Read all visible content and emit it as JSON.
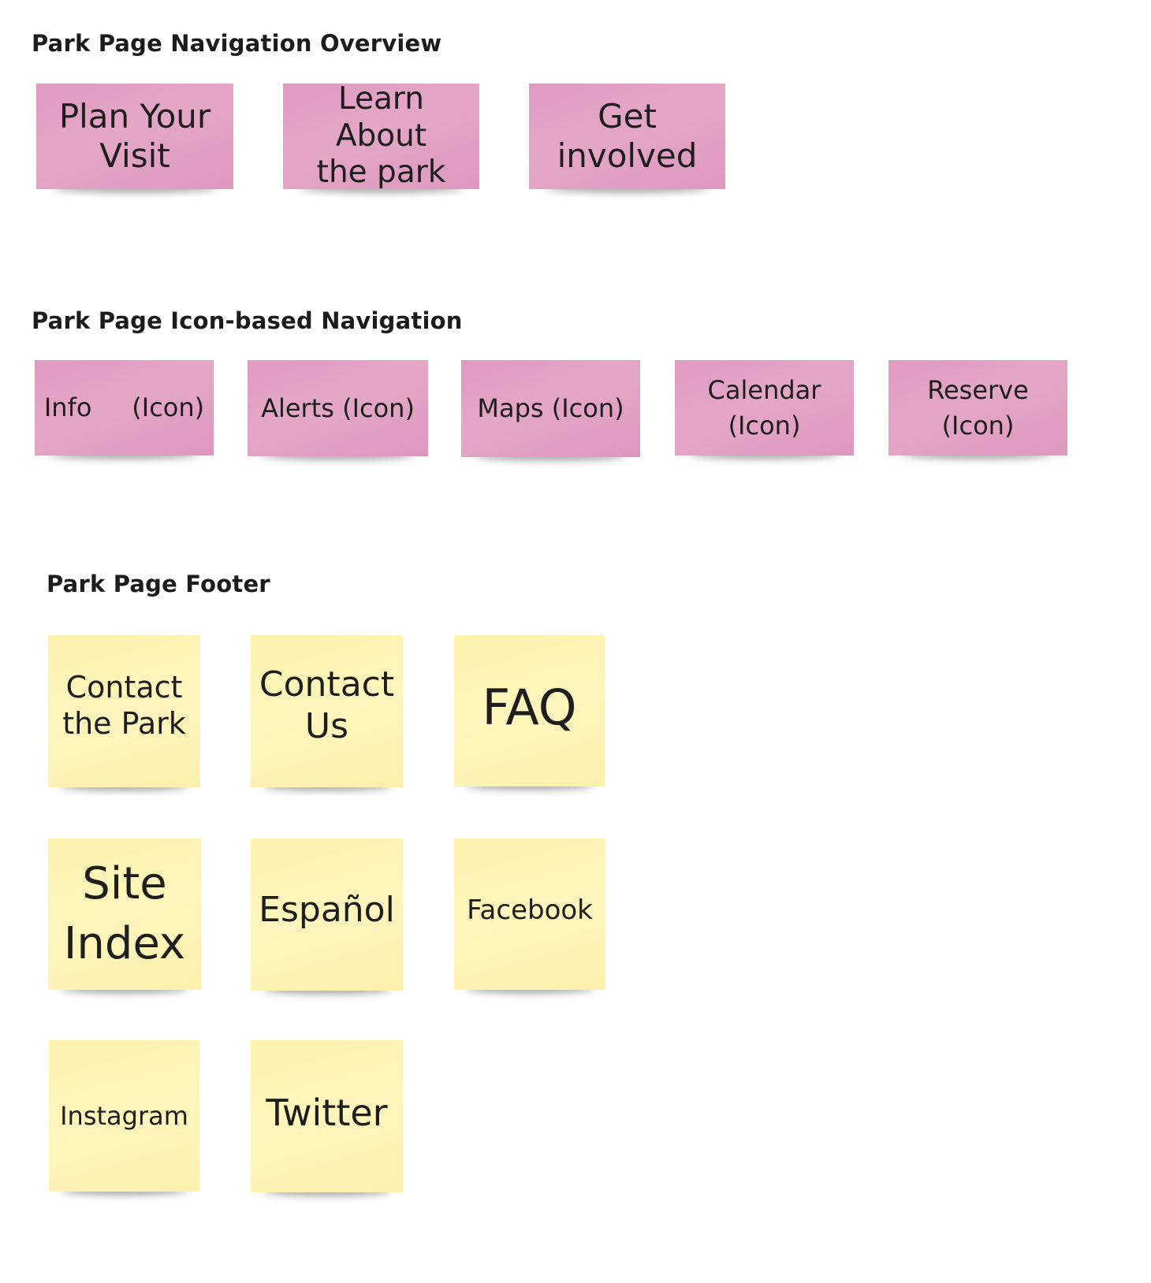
{
  "sections": {
    "overview": {
      "title": "Park Page Navigation Overview",
      "notes": [
        "Plan Your\nVisit",
        "Learn About\nthe park",
        "Get\ninvolved"
      ]
    },
    "icon_nav": {
      "title": "Park Page Icon-based Navigation",
      "notes": [
        "Info     (Icon)",
        "Alerts (Icon)",
        "Maps (Icon)",
        "Calendar\n(Icon)",
        "Reserve\n(Icon)"
      ]
    },
    "footer": {
      "title": "Park Page Footer",
      "notes": [
        "Contact\nthe Park",
        "Contact\nUs",
        "FAQ",
        "Site\nIndex",
        "Español",
        "Facebook",
        "Instagram",
        "Twitter"
      ]
    }
  },
  "colors": {
    "pink_note": "#e0a0c4",
    "yellow_note": "#fdf3b6"
  }
}
